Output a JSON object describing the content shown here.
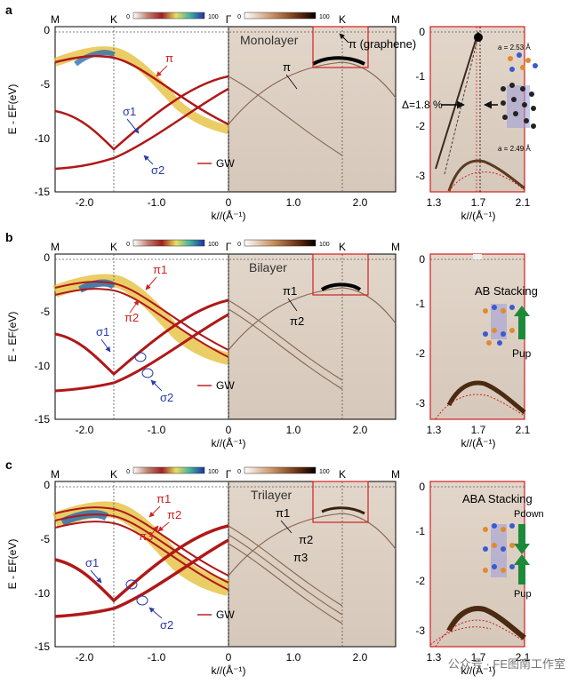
{
  "panel_labels": [
    "a",
    "b",
    "c"
  ],
  "top_ticks": [
    "M",
    "K",
    "Γ",
    "K",
    "M"
  ],
  "x_ticks_left": [
    "-2.0",
    "-1.0",
    "0",
    "1.0",
    "2.0"
  ],
  "x_label_left": "k//(Å⁻¹)",
  "x_ticks_right": [
    "1.3",
    "1.7",
    "2.1"
  ],
  "x_label_right": "k//(Å⁻¹)",
  "y_ticks": [
    "0",
    "-5",
    "-10",
    "-15"
  ],
  "y_ticks_right": [
    "0",
    "-1",
    "-2",
    "-3"
  ],
  "y_label": "E - EF(eV)",
  "colorbar_min": "0",
  "colorbar_max": "100",
  "gw_legend": "GW",
  "panels": [
    {
      "title": "Monolayer",
      "labels": {
        "pi_left": "π",
        "sigma1": "σ1",
        "sigma2": "σ2",
        "pi_mid": "π",
        "pi_graphene": "π (graphene)"
      },
      "inset": {
        "delta": "Δ=1.8 %",
        "a_top": "a = 2.53 Å",
        "a_bottom": "a = 2.49 Å"
      }
    },
    {
      "title": "Bilayer",
      "labels": {
        "pi1": "π1",
        "pi2": "π2",
        "sigma1": "σ1",
        "sigma2": "σ2",
        "pi1_mid": "π1",
        "pi2_mid": "π2"
      },
      "inset": {
        "stacking": "AB Stacking",
        "p_up": "Pup"
      }
    },
    {
      "title": "Trilayer",
      "labels": {
        "pi1": "π1",
        "pi2": "π2",
        "pi3": "π3",
        "sigma1": "σ1",
        "sigma2": "σ2",
        "pi1_mid": "π1",
        "pi2_mid": "π2",
        "pi3_mid": "π3"
      },
      "inset": {
        "stacking": "ABA Stacking",
        "p_down": "Pdown",
        "p_up": "Pup"
      }
    }
  ],
  "watermark": "公众号 · FE图南工作室",
  "colors": {
    "red": "#c0202a",
    "blue": "#2a3aa8",
    "dark_red": "#a01818",
    "bg_tan": "#dccfc2"
  }
}
